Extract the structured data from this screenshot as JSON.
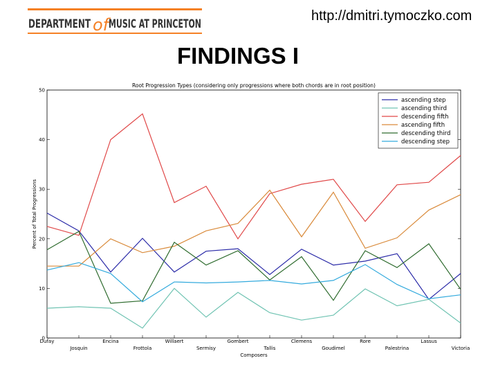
{
  "header": {
    "logo_text": "DEPARTMENT of MUSIC AT PRINCETON",
    "logo_part1": "DEPARTMENT",
    "logo_part2": "of",
    "logo_part3": "MUSIC AT PRINCETON",
    "url": "http://dmitri.tymoczko.com"
  },
  "slide": {
    "title": "FINDINGS I"
  },
  "colors": {
    "logo_orange": "#f58025",
    "logo_text": "#333333",
    "ascending_step": "#2b2ba8",
    "ascending_third": "#6fc3b2",
    "descending_fifth": "#e04848",
    "ascending_fifth": "#d98a3a",
    "descending_third": "#2e6b2e",
    "descending_step": "#33aadd"
  },
  "chart_data": {
    "type": "line",
    "title": "Root Progression Types (considering only progressions where both chords are in root position)",
    "xlabel": "Composers",
    "ylabel": "Percent of Total Progressions",
    "ylim": [
      0,
      50
    ],
    "yticks": [
      0,
      10,
      20,
      30,
      40,
      50
    ],
    "legend_position": "top-right",
    "grid": false,
    "categories": [
      "Dufay",
      "Josquin",
      "Encina",
      "Frottola",
      "Willaert",
      "Sermisy",
      "Gombert",
      "Tallis",
      "Clemens",
      "Goudimel",
      "Rore",
      "Palestrina",
      "Lassus",
      "Victoria"
    ],
    "series": [
      {
        "name": "ascending step",
        "color": "#2b2ba8",
        "values": [
          25.2,
          21.6,
          13.3,
          20.1,
          13.3,
          17.5,
          18.0,
          12.8,
          17.9,
          14.7,
          15.5,
          17.0,
          7.8,
          13.0
        ]
      },
      {
        "name": "ascending third",
        "color": "#6fc3b2",
        "values": [
          6.0,
          6.3,
          6.0,
          2.0,
          10.0,
          4.2,
          9.2,
          5.1,
          3.6,
          4.6,
          9.9,
          6.5,
          7.8,
          3.0
        ]
      },
      {
        "name": "descending fifth",
        "color": "#e04848",
        "values": [
          22.5,
          20.7,
          40.0,
          45.2,
          27.3,
          30.6,
          20.0,
          29.1,
          31.0,
          32.0,
          23.5,
          30.9,
          31.4,
          36.8
        ]
      },
      {
        "name": "ascending fifth",
        "color": "#d98a3a",
        "values": [
          14.5,
          14.5,
          20.0,
          17.2,
          18.5,
          21.6,
          23.1,
          29.8,
          20.4,
          29.4,
          18.1,
          20.2,
          25.8,
          28.9
        ]
      },
      {
        "name": "descending third",
        "color": "#2e6b2e",
        "values": [
          17.8,
          21.5,
          7.0,
          7.5,
          19.3,
          14.7,
          17.6,
          11.7,
          16.4,
          7.6,
          17.6,
          14.2,
          19.0,
          9.8
        ]
      },
      {
        "name": "descending step",
        "color": "#33aadd",
        "values": [
          13.7,
          15.2,
          13.0,
          7.3,
          11.3,
          11.1,
          11.3,
          11.6,
          10.9,
          11.6,
          14.8,
          10.8,
          7.9,
          8.7
        ]
      }
    ]
  }
}
